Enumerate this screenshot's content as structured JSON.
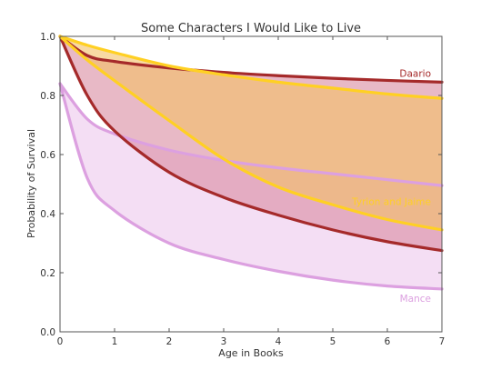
{
  "chart_data": {
    "type": "line",
    "title": "Some Characters I Would Like to Live",
    "xlabel": "Age in Books",
    "ylabel": "Probability of Survival",
    "xlim": [
      0,
      7
    ],
    "ylim": [
      0,
      1
    ],
    "xticks": [
      "0",
      "1",
      "2",
      "3",
      "4",
      "5",
      "6",
      "7"
    ],
    "yticks": [
      "0.0",
      "0.2",
      "0.4",
      "0.6",
      "0.8",
      "1.0"
    ],
    "x": [
      0,
      0.5,
      1,
      2,
      3,
      4,
      5,
      6,
      7
    ],
    "series": [
      {
        "name": "Daario",
        "color": "#a52a2a",
        "fill": "#d98aa0",
        "upper": [
          1.0,
          0.935,
          0.915,
          0.893,
          0.878,
          0.867,
          0.858,
          0.851,
          0.845
        ],
        "lower": [
          1.0,
          0.8,
          0.68,
          0.54,
          0.455,
          0.395,
          0.345,
          0.305,
          0.275
        ]
      },
      {
        "name": "Tyrion and Jaime",
        "color": "#ffd023",
        "fill": "#f4c066",
        "upper": [
          1.0,
          0.97,
          0.945,
          0.9,
          0.87,
          0.845,
          0.825,
          0.805,
          0.79
        ],
        "lower": [
          1.0,
          0.92,
          0.85,
          0.715,
          0.585,
          0.49,
          0.43,
          0.38,
          0.345
        ]
      },
      {
        "name": "Mance",
        "color": "#dca0e0",
        "fill": "#ecc8ec",
        "upper": [
          0.84,
          0.72,
          0.67,
          0.615,
          0.58,
          0.555,
          0.535,
          0.515,
          0.495
        ],
        "lower": [
          0.84,
          0.52,
          0.41,
          0.3,
          0.245,
          0.205,
          0.175,
          0.155,
          0.145
        ]
      }
    ]
  }
}
